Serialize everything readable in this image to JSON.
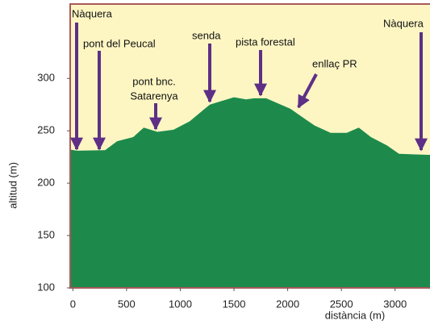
{
  "chart_data": {
    "type": "area",
    "x": [
      -25,
      37,
      300,
      412,
      562,
      660,
      787,
      937,
      1087,
      1275,
      1500,
      1612,
      1687,
      1800,
      2025,
      2250,
      2400,
      2550,
      2662,
      2775,
      2925,
      3037,
      3300,
      3325
    ],
    "values": [
      232,
      231,
      231.5,
      240,
      244,
      253,
      249,
      251,
      259,
      275,
      282,
      280,
      281,
      281,
      271,
      255,
      248,
      248,
      253,
      244,
      236,
      228,
      227,
      227
    ],
    "color": "#1d8a4c",
    "background": "#fdf6c3",
    "xlim": [
      -25,
      3325
    ],
    "ylim": [
      100,
      371
    ],
    "xticks": [
      0,
      500,
      1000,
      1500,
      2000,
      2500,
      3000
    ],
    "yticks": [
      100,
      150,
      200,
      250,
      300
    ],
    "xlabel": "distància  (m)",
    "ylabel": "altitud  (m)",
    "annotations": [
      {
        "text": [
          "Nàquera"
        ]
      },
      {
        "text": [
          "pont del Peucal"
        ]
      },
      {
        "text": [
          "pont bnc.",
          "Satarenya"
        ]
      },
      {
        "text": [
          "senda"
        ]
      },
      {
        "text": [
          "pista forestal"
        ]
      },
      {
        "text": [
          "enllaç PR"
        ]
      },
      {
        "text": [
          "Nàquera"
        ]
      }
    ]
  }
}
